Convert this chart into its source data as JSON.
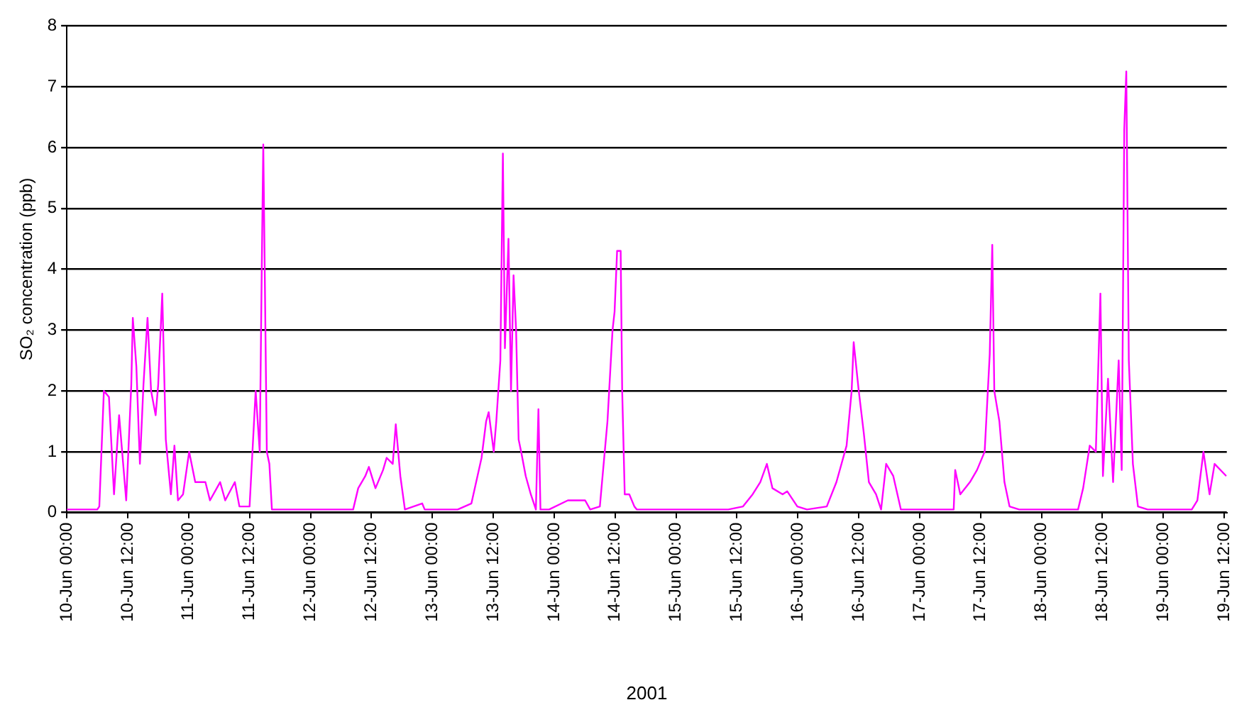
{
  "chart_data": {
    "type": "line",
    "xlabel": "2001",
    "ylabel": "SO₂ concentration (ppb)",
    "x": [
      "2001-06-10T00:00",
      "2001-06-10T06:00",
      "2001-06-10T06:24",
      "2001-06-10T07:18",
      "2001-06-10T08:18",
      "2001-06-10T09:18",
      "2001-06-10T10:18",
      "2001-06-10T11:42",
      "2001-06-10T12:42",
      "2001-06-10T13:00",
      "2001-06-10T13:42",
      "2001-06-10T14:24",
      "2001-06-10T15:06",
      "2001-06-10T15:54",
      "2001-06-10T16:36",
      "2001-06-10T17:30",
      "2001-06-10T18:00",
      "2001-06-10T18:48",
      "2001-06-10T19:30",
      "2001-06-10T20:30",
      "2001-06-10T21:12",
      "2001-06-10T21:54",
      "2001-06-10T22:54",
      "2001-06-11T00:06",
      "2001-06-11T01:18",
      "2001-06-11T03:18",
      "2001-06-11T04:12",
      "2001-06-11T06:12",
      "2001-06-11T07:12",
      "2001-06-11T09:06",
      "2001-06-11T10:00",
      "2001-06-11T12:00",
      "2001-06-11T13:12",
      "2001-06-11T14:00",
      "2001-06-11T14:24",
      "2001-06-11T14:42",
      "2001-06-11T15:24",
      "2001-06-11T15:54",
      "2001-06-11T16:24",
      "2001-06-12T08:24",
      "2001-06-12T09:24",
      "2001-06-12T10:48",
      "2001-06-12T11:30",
      "2001-06-12T12:48",
      "2001-06-12T14:18",
      "2001-06-12T15:00",
      "2001-06-12T16:12",
      "2001-06-12T16:48",
      "2001-06-12T17:42",
      "2001-06-12T18:36",
      "2001-06-12T22:00",
      "2001-06-12T22:30",
      "2001-06-13T05:00",
      "2001-06-13T07:42",
      "2001-06-13T09:42",
      "2001-06-13T10:36",
      "2001-06-13T11:06",
      "2001-06-13T12:06",
      "2001-06-13T12:36",
      "2001-06-13T13:24",
      "2001-06-13T13:54",
      "2001-06-13T14:18",
      "2001-06-13T15:00",
      "2001-06-13T15:30",
      "2001-06-13T16:00",
      "2001-06-13T16:30",
      "2001-06-13T17:00",
      "2001-06-13T17:30",
      "2001-06-13T18:24",
      "2001-06-13T19:24",
      "2001-06-13T20:24",
      "2001-06-13T20:54",
      "2001-06-13T21:18",
      "2001-06-13T23:00",
      "2001-06-14T02:42",
      "2001-06-14T04:06",
      "2001-06-14T06:06",
      "2001-06-14T07:06",
      "2001-06-14T09:00",
      "2001-06-14T10:30",
      "2001-06-14T11:30",
      "2001-06-14T11:54",
      "2001-06-14T12:24",
      "2001-06-14T13:06",
      "2001-06-14T13:24",
      "2001-06-14T13:54",
      "2001-06-14T14:48",
      "2001-06-14T15:48",
      "2001-06-14T16:18",
      "2001-06-15T10:18",
      "2001-06-15T13:12",
      "2001-06-15T15:06",
      "2001-06-15T16:36",
      "2001-06-15T17:54",
      "2001-06-15T19:00",
      "2001-06-15T21:00",
      "2001-06-15T21:54",
      "2001-06-15T23:54",
      "2001-06-16T01:48",
      "2001-06-16T05:42",
      "2001-06-16T07:36",
      "2001-06-16T09:36",
      "2001-06-16T10:36",
      "2001-06-16T11:00",
      "2001-06-16T12:00",
      "2001-06-16T13:00",
      "2001-06-16T14:00",
      "2001-06-16T15:24",
      "2001-06-16T16:24",
      "2001-06-16T17:24",
      "2001-06-16T18:48",
      "2001-06-16T20:18",
      "2001-06-17T06:42",
      "2001-06-17T07:00",
      "2001-06-17T08:00",
      "2001-06-17T09:54",
      "2001-06-17T11:18",
      "2001-06-17T12:48",
      "2001-06-17T13:48",
      "2001-06-17T14:18",
      "2001-06-17T14:42",
      "2001-06-17T15:42",
      "2001-06-17T16:42",
      "2001-06-17T17:42",
      "2001-06-17T19:36",
      "2001-06-17T23:30",
      "2001-06-18T07:12",
      "2001-06-18T08:12",
      "2001-06-18T09:30",
      "2001-06-18T10:42",
      "2001-06-18T11:36",
      "2001-06-18T12:06",
      "2001-06-18T13:06",
      "2001-06-18T14:06",
      "2001-06-18T15:12",
      "2001-06-18T15:48",
      "2001-06-18T16:18",
      "2001-06-18T16:42",
      "2001-06-18T17:12",
      "2001-06-18T18:00",
      "2001-06-18T19:00",
      "2001-06-18T20:54",
      "2001-06-19T05:36",
      "2001-06-19T06:42",
      "2001-06-19T07:54",
      "2001-06-19T09:06",
      "2001-06-19T10:06",
      "2001-06-19T12:24"
    ],
    "series": [
      {
        "color": "#ff00ff",
        "values": [
          0.05,
          0.05,
          0.1,
          2.0,
          1.9,
          0.3,
          1.6,
          0.2,
          2.1,
          3.2,
          2.4,
          0.8,
          2.1,
          3.2,
          2.0,
          1.6,
          2.1,
          3.6,
          1.2,
          0.3,
          1.1,
          0.2,
          0.3,
          1.0,
          0.5,
          0.5,
          0.2,
          0.5,
          0.2,
          0.5,
          0.1,
          0.1,
          2.0,
          1.0,
          4.0,
          6.05,
          1.0,
          0.8,
          0.05,
          0.05,
          0.4,
          0.6,
          0.75,
          0.4,
          0.7,
          0.9,
          0.8,
          1.45,
          0.6,
          0.05,
          0.15,
          0.05,
          0.05,
          0.15,
          0.9,
          1.5,
          1.65,
          1.0,
          1.5,
          2.5,
          5.9,
          2.7,
          4.5,
          2.0,
          3.9,
          3.0,
          1.2,
          1.0,
          0.6,
          0.3,
          0.05,
          1.7,
          0.05,
          0.05,
          0.2,
          0.2,
          0.2,
          0.05,
          0.1,
          1.5,
          3.0,
          3.3,
          4.3,
          4.3,
          2.0,
          0.3,
          0.3,
          0.1,
          0.05,
          0.05,
          0.1,
          0.3,
          0.5,
          0.8,
          0.4,
          0.3,
          0.35,
          0.1,
          0.05,
          0.1,
          0.5,
          1.1,
          2.0,
          2.8,
          2.0,
          1.3,
          0.5,
          0.3,
          0.05,
          0.8,
          0.6,
          0.05,
          0.05,
          0.7,
          0.3,
          0.5,
          0.7,
          1.0,
          2.6,
          4.4,
          2.0,
          1.5,
          0.5,
          0.1,
          0.05,
          0.05,
          0.05,
          0.4,
          1.1,
          1.0,
          3.6,
          0.6,
          2.2,
          0.5,
          2.5,
          0.7,
          6.3,
          7.25,
          2.5,
          0.8,
          0.1,
          0.05,
          0.05,
          0.2,
          1.0,
          0.3,
          0.8,
          0.6
        ]
      }
    ],
    "xlim": [
      "2001-06-10T00:00",
      "2001-06-19T12:30"
    ],
    "xticks": [
      {
        "value": "2001-06-10T00:00",
        "label": "10-Jun 00:00"
      },
      {
        "value": "2001-06-10T12:00",
        "label": "10-Jun 12:00"
      },
      {
        "value": "2001-06-11T00:00",
        "label": "11-Jun 00:00"
      },
      {
        "value": "2001-06-11T12:00",
        "label": "11-Jun 12:00"
      },
      {
        "value": "2001-06-12T00:00",
        "label": "12-Jun 00:00"
      },
      {
        "value": "2001-06-12T12:00",
        "label": "12-Jun 12:00"
      },
      {
        "value": "2001-06-13T00:00",
        "label": "13-Jun 00:00"
      },
      {
        "value": "2001-06-13T12:00",
        "label": "13-Jun 12:00"
      },
      {
        "value": "2001-06-14T00:00",
        "label": "14-Jun 00:00"
      },
      {
        "value": "2001-06-14T12:00",
        "label": "14-Jun 12:00"
      },
      {
        "value": "2001-06-15T00:00",
        "label": "15-Jun 00:00"
      },
      {
        "value": "2001-06-15T12:00",
        "label": "15-Jun 12:00"
      },
      {
        "value": "2001-06-16T00:00",
        "label": "16-Jun 00:00"
      },
      {
        "value": "2001-06-16T12:00",
        "label": "16-Jun 12:00"
      },
      {
        "value": "2001-06-17T00:00",
        "label": "17-Jun 00:00"
      },
      {
        "value": "2001-06-17T12:00",
        "label": "17-Jun 12:00"
      },
      {
        "value": "2001-06-18T00:00",
        "label": "18-Jun 00:00"
      },
      {
        "value": "2001-06-18T12:00",
        "label": "18-Jun 12:00"
      },
      {
        "value": "2001-06-19T00:00",
        "label": "19-Jun 00:00"
      },
      {
        "value": "2001-06-19T12:00",
        "label": "19-Jun 12:00"
      }
    ],
    "ylim": [
      0,
      8
    ],
    "yticks": [
      0,
      1,
      2,
      3,
      4,
      5,
      6,
      7,
      8
    ],
    "grid": "y",
    "marker": "none",
    "line_style": "solid",
    "legend": false
  }
}
